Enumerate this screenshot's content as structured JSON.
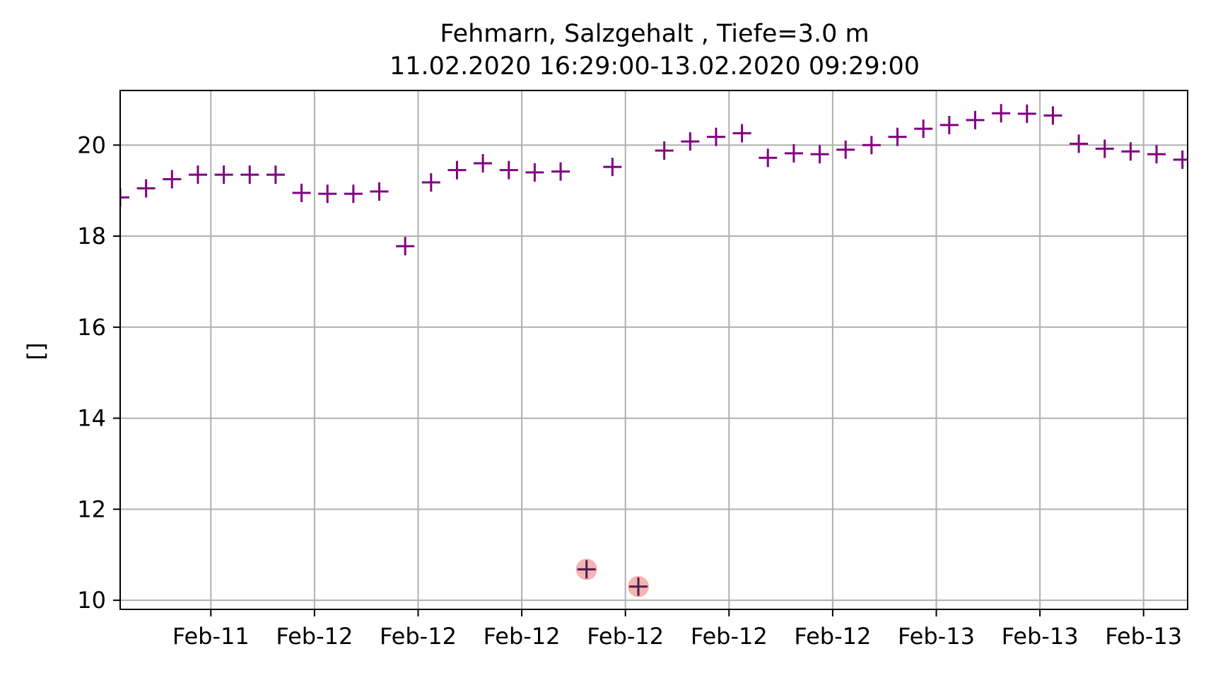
{
  "chart_data": {
    "type": "scatter",
    "title": "Fehmarn, Salzgehalt , Tiefe=3.0 m",
    "subtitle": "11.02.2020 16:29:00-13.02.2020 09:29:00",
    "xlabel": "",
    "ylabel": "[]",
    "ylim": [
      9.8,
      21.2
    ],
    "yticks": [
      10,
      12,
      14,
      16,
      18,
      20
    ],
    "xlim": [
      0,
      41.2
    ],
    "xticks": [
      3.5,
      7.5,
      11.5,
      15.5,
      19.5,
      23.5,
      27.5,
      31.5,
      35.5,
      39.5
    ],
    "xtick_labels": [
      "Feb-11",
      "Feb-12",
      "Feb-12",
      "Feb-12",
      "Feb-12",
      "Feb-12",
      "Feb-12",
      "Feb-13",
      "Feb-13",
      "Feb-13"
    ],
    "grid": true,
    "marker": "+",
    "colors": {
      "marker": "#800080",
      "flagged": "#f4a6a6",
      "grid": "#b0b0b0"
    },
    "series": [
      {
        "x": [
          0,
          1,
          2,
          3,
          4,
          5,
          6,
          7,
          8,
          9,
          10,
          11,
          12,
          13,
          14,
          15,
          16,
          17,
          18,
          19,
          20,
          21,
          22,
          23,
          24,
          25,
          26,
          27,
          28,
          29,
          30,
          31,
          32,
          33,
          34,
          35,
          36,
          37,
          38,
          39,
          40,
          41
        ],
        "y": [
          18.85,
          19.05,
          19.25,
          19.35,
          19.35,
          19.35,
          19.35,
          18.95,
          18.93,
          18.93,
          18.98,
          17.78,
          19.18,
          19.45,
          19.6,
          19.45,
          19.4,
          19.42,
          10.68,
          19.52,
          10.3,
          19.88,
          20.08,
          20.18,
          20.26,
          19.72,
          19.82,
          19.8,
          19.9,
          20.0,
          20.18,
          20.36,
          20.44,
          20.55,
          20.7,
          20.69,
          20.65,
          20.03,
          19.92,
          19.86,
          19.8,
          19.68
        ],
        "flagged": [
          18,
          20
        ]
      }
    ]
  }
}
